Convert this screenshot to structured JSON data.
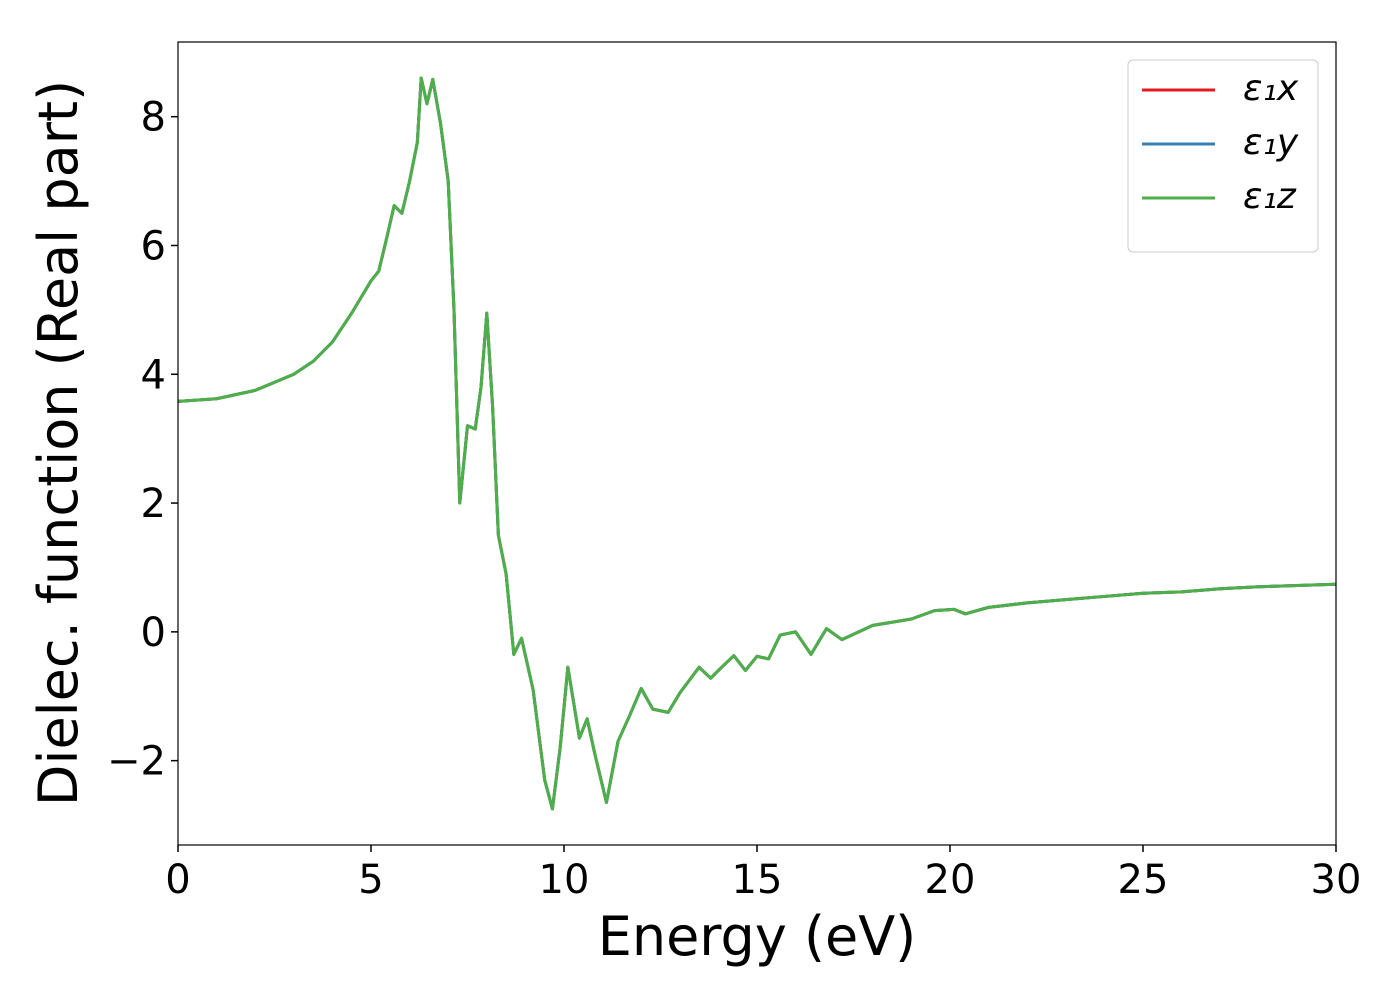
{
  "chart_data": {
    "type": "line",
    "xlabel": "Energy (eV)",
    "ylabel": "Dielec. function (Real part)",
    "x": [
      0,
      1,
      2,
      3,
      3.5,
      4,
      4.5,
      5,
      5.2,
      5.4,
      5.6,
      5.8,
      6.0,
      6.2,
      6.3,
      6.45,
      6.6,
      6.8,
      7.0,
      7.15,
      7.3,
      7.5,
      7.7,
      7.85,
      8.0,
      8.15,
      8.3,
      8.5,
      8.7,
      8.9,
      9.2,
      9.5,
      9.7,
      9.9,
      10.1,
      10.4,
      10.6,
      10.8,
      11.1,
      11.4,
      11.7,
      12.0,
      12.3,
      12.7,
      13.0,
      13.5,
      13.8,
      14.0,
      14.4,
      14.7,
      15.0,
      15.3,
      15.6,
      16.0,
      16.4,
      16.8,
      17.2,
      18,
      19,
      19.6,
      20.1,
      20.4,
      21,
      22,
      23,
      24,
      25,
      26,
      27,
      28,
      29,
      30
    ],
    "series": [
      {
        "name": "ε₁x",
        "color": "#e41a1c",
        "values": [
          3.58,
          3.62,
          3.75,
          4.0,
          4.2,
          4.5,
          4.95,
          5.45,
          5.6,
          6.1,
          6.62,
          6.5,
          7.0,
          7.6,
          8.6,
          8.2,
          8.58,
          7.9,
          7.0,
          5.0,
          2.0,
          3.2,
          3.15,
          3.8,
          4.95,
          3.5,
          1.5,
          0.9,
          -0.35,
          -0.1,
          -0.9,
          -2.3,
          -2.75,
          -1.8,
          -0.55,
          -1.65,
          -1.35,
          -1.9,
          -2.65,
          -1.7,
          -1.3,
          -0.88,
          -1.2,
          -1.25,
          -0.95,
          -0.55,
          -0.72,
          -0.6,
          -0.37,
          -0.6,
          -0.38,
          -0.42,
          -0.05,
          0.0,
          -0.35,
          0.05,
          -0.12,
          0.1,
          0.2,
          0.33,
          0.35,
          0.28,
          0.38,
          0.45,
          0.5,
          0.55,
          0.6,
          0.62,
          0.67,
          0.7,
          0.72,
          0.74
        ]
      },
      {
        "name": "ε₁y",
        "color": "#377eb8",
        "values": [
          3.58,
          3.62,
          3.75,
          4.0,
          4.2,
          4.5,
          4.95,
          5.45,
          5.6,
          6.1,
          6.62,
          6.5,
          7.0,
          7.6,
          8.6,
          8.2,
          8.58,
          7.9,
          7.0,
          5.0,
          2.0,
          3.2,
          3.15,
          3.8,
          4.95,
          3.5,
          1.5,
          0.9,
          -0.35,
          -0.1,
          -0.9,
          -2.3,
          -2.75,
          -1.8,
          -0.55,
          -1.65,
          -1.35,
          -1.9,
          -2.65,
          -1.7,
          -1.3,
          -0.88,
          -1.2,
          -1.25,
          -0.95,
          -0.55,
          -0.72,
          -0.6,
          -0.37,
          -0.6,
          -0.38,
          -0.42,
          -0.05,
          0.0,
          -0.35,
          0.05,
          -0.12,
          0.1,
          0.2,
          0.33,
          0.35,
          0.28,
          0.38,
          0.45,
          0.5,
          0.55,
          0.6,
          0.62,
          0.67,
          0.7,
          0.72,
          0.74
        ]
      },
      {
        "name": "ε₁z",
        "color": "#4daf4a",
        "values": [
          3.58,
          3.62,
          3.75,
          4.0,
          4.2,
          4.5,
          4.95,
          5.45,
          5.6,
          6.1,
          6.62,
          6.5,
          7.0,
          7.6,
          8.6,
          8.2,
          8.58,
          7.9,
          7.0,
          5.0,
          2.0,
          3.2,
          3.15,
          3.8,
          4.95,
          3.5,
          1.5,
          0.9,
          -0.35,
          -0.1,
          -0.9,
          -2.3,
          -2.75,
          -1.8,
          -0.55,
          -1.65,
          -1.35,
          -1.9,
          -2.65,
          -1.7,
          -1.3,
          -0.88,
          -1.2,
          -1.25,
          -0.95,
          -0.55,
          -0.72,
          -0.6,
          -0.37,
          -0.6,
          -0.38,
          -0.42,
          -0.05,
          0.0,
          -0.35,
          0.05,
          -0.12,
          0.1,
          0.2,
          0.33,
          0.35,
          0.28,
          0.38,
          0.45,
          0.5,
          0.55,
          0.6,
          0.62,
          0.67,
          0.7,
          0.72,
          0.74
        ]
      }
    ],
    "xlim": [
      0,
      30
    ],
    "xticks": [
      0,
      5,
      10,
      15,
      20,
      25,
      30
    ],
    "ylim": [
      -3.31,
      9.16
    ],
    "yticks": [
      {
        "value": -2,
        "label": "−2"
      },
      0,
      2,
      4,
      6,
      8
    ],
    "grid": false,
    "legend": "upper right"
  }
}
